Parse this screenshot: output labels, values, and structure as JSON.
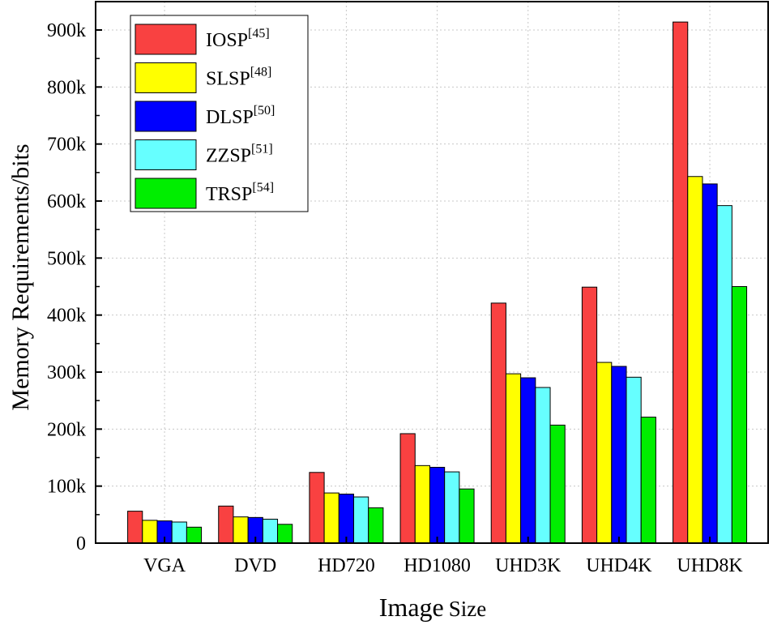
{
  "chart_data": {
    "type": "bar",
    "xlabel_main": "Image",
    "xlabel_small": "Size",
    "ylabel": "Memory Requirements/bits",
    "categories": [
      "VGA",
      "DVD",
      "HD720",
      "HD1080",
      "UHD3K",
      "UHD4K",
      "UHD8K"
    ],
    "ylim": [
      0,
      900000
    ],
    "yticks": [
      0,
      100000,
      200000,
      300000,
      400000,
      500000,
      600000,
      700000,
      800000,
      900000
    ],
    "ytick_labels": [
      "0",
      "100k",
      "200k",
      "300k",
      "400k",
      "500k",
      "600k",
      "700k",
      "800k",
      "900k"
    ],
    "grid": true,
    "legend_position": "top-left",
    "series": [
      {
        "name": "IOSP",
        "ref": "[45]",
        "color": "#f94141",
        "values": [
          56000,
          65000,
          124000,
          192000,
          421000,
          449000,
          914000
        ]
      },
      {
        "name": "SLSP",
        "ref": "[48]",
        "color": "#ffff00",
        "values": [
          40000,
          46000,
          88000,
          136000,
          297000,
          317000,
          643000
        ]
      },
      {
        "name": "DLSP",
        "ref": "[50]",
        "color": "#0000ff",
        "values": [
          39000,
          45000,
          86000,
          133000,
          290000,
          310000,
          630000
        ]
      },
      {
        "name": "ZZSP",
        "ref": "[51]",
        "color": "#66ffff",
        "values": [
          37000,
          42000,
          81000,
          125000,
          273000,
          291000,
          592000
        ]
      },
      {
        "name": "TRSP",
        "ref": "[54]",
        "color": "#00ee00",
        "values": [
          28000,
          33000,
          62000,
          95000,
          207000,
          221000,
          450000
        ]
      }
    ]
  }
}
